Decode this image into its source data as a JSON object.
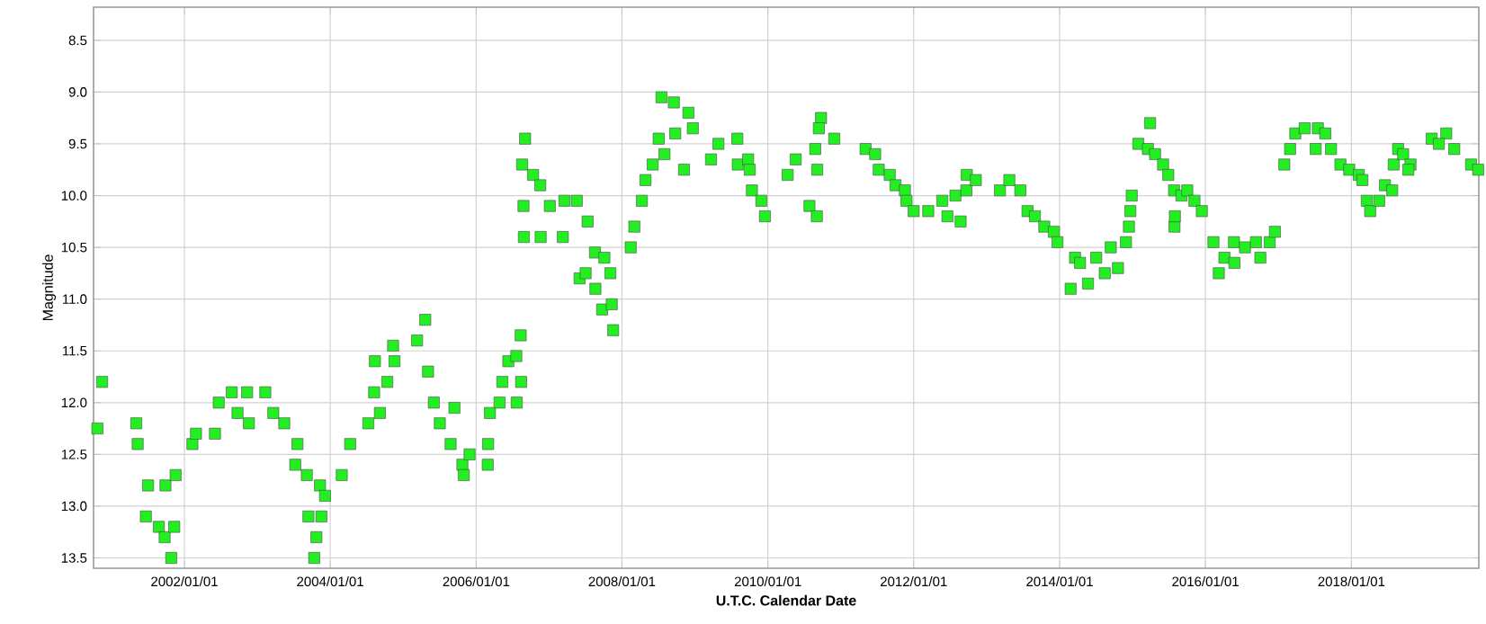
{
  "chart_data": {
    "type": "scatter",
    "xlabel": "U.T.C. Calendar Date",
    "ylabel": "Magnitude",
    "x": [
      "2000-10-22",
      "2000-11-15",
      "2001-05-05",
      "2001-05-12",
      "2001-07-03",
      "2001-06-22",
      "2001-08-26",
      "2001-09-24",
      "2001-09-28",
      "2001-11-18",
      "2001-10-27",
      "2001-11-11",
      "2002-02-10",
      "2002-02-28",
      "2002-06-22",
      "2002-06-03",
      "2002-08-26",
      "2002-11-11",
      "2002-11-20",
      "2002-09-24",
      "2003-02-10",
      "2003-03-22",
      "2003-05-16",
      "2003-07-21",
      "2003-07-10",
      "2003-09-06",
      "2003-11-11",
      "2003-12-06",
      "2003-09-14",
      "2003-11-18",
      "2003-10-24",
      "2003-10-13",
      "2004-02-28",
      "2004-04-10",
      "2004-07-10",
      "2004-08-08",
      "2004-08-12",
      "2004-10-13",
      "2004-11-11",
      "2004-11-18",
      "2004-09-06",
      "2005-03-11",
      "2005-04-21",
      "2005-05-05",
      "2005-06-03",
      "2005-07-03",
      "2005-09-14",
      "2005-08-26",
      "2005-10-24",
      "2005-10-31",
      "2005-11-29",
      "2006-02-28",
      "2006-03-02",
      "2006-03-11",
      "2006-04-28",
      "2006-05-12",
      "2006-06-11",
      "2006-07-21",
      "2006-08-12",
      "2006-08-14",
      "2006-07-23",
      "2006-09-03",
      "2006-08-19",
      "2006-08-26",
      "2006-08-28",
      "2006-10-13",
      "2006-11-18",
      "2006-11-20",
      "2007-01-05",
      "2007-03-19",
      "2007-03-11",
      "2007-06-03",
      "2007-05-20",
      "2007-07-13",
      "2007-08-19",
      "2007-10-05",
      "2007-11-04",
      "2007-07-03",
      "2007-08-21",
      "2007-09-24",
      "2007-11-11",
      "2007-11-18",
      "2008-02-14",
      "2008-03-03",
      "2008-04-10",
      "2008-04-28",
      "2008-06-03",
      "2008-07-03",
      "2008-07-17",
      "2008-08-01",
      "2008-09-24",
      "2008-09-17",
      "2008-11-29",
      "2008-12-21",
      "2008-11-07",
      "2009-03-22",
      "2009-04-28",
      "2009-08-01",
      "2009-08-03",
      "2009-09-24",
      "2009-10-02",
      "2009-10-13",
      "2009-11-29",
      "2009-12-17",
      "2010-04-10",
      "2010-05-20",
      "2010-07-28",
      "2010-09-03",
      "2010-09-05",
      "2010-09-24",
      "2010-09-13",
      "2010-08-26",
      "2010-11-29",
      "2011-05-05",
      "2011-06-22",
      "2011-07-10",
      "2011-09-03",
      "2011-10-02",
      "2011-11-18",
      "2011-11-26",
      "2012-01-01",
      "2012-03-14",
      "2012-05-23",
      "2012-06-18",
      "2012-08-23",
      "2012-07-28",
      "2012-09-21",
      "2012-09-23",
      "2012-11-07",
      "2013-03-08",
      "2013-04-24",
      "2013-06-18",
      "2013-07-24",
      "2013-08-30",
      "2013-10-16",
      "2013-12-03",
      "2013-12-21",
      "2014-02-25",
      "2014-03-19",
      "2014-04-13",
      "2014-05-23",
      "2014-07-03",
      "2014-08-15",
      "2014-09-14",
      "2014-10-20",
      "2014-11-29",
      "2014-12-14",
      "2014-12-21",
      "2014-12-28",
      "2015-01-30",
      "2015-03-30",
      "2015-03-19",
      "2015-04-24",
      "2015-06-03",
      "2015-06-29",
      "2015-07-28",
      "2015-07-30",
      "2015-08-01",
      "2015-09-03",
      "2015-10-02",
      "2015-11-07",
      "2015-12-14",
      "2016-02-10",
      "2016-03-08",
      "2016-04-05",
      "2016-05-23",
      "2016-05-25",
      "2016-07-17",
      "2016-09-10",
      "2016-10-02",
      "2016-11-18",
      "2016-12-14",
      "2017-01-30",
      "2017-02-28",
      "2017-03-26",
      "2017-05-12",
      "2017-07-17",
      "2017-08-23",
      "2017-07-06",
      "2017-09-21",
      "2017-11-07",
      "2017-12-21",
      "2018-02-07",
      "2018-02-25",
      "2018-03-19",
      "2018-04-05",
      "2018-05-20",
      "2018-06-18",
      "2018-07-24",
      "2018-08-01",
      "2018-08-23",
      "2018-09-17",
      "2018-10-24",
      "2018-10-13",
      "2019-02-07",
      "2019-04-21",
      "2019-05-31",
      "2019-03-15",
      "2019-08-23",
      "2019-09-28"
    ],
    "values": [
      12.25,
      11.8,
      12.2,
      12.4,
      12.8,
      13.1,
      13.2,
      13.3,
      12.8,
      12.7,
      13.5,
      13.2,
      12.4,
      12.3,
      12.0,
      12.3,
      11.9,
      11.9,
      12.2,
      12.1,
      11.9,
      12.1,
      12.2,
      12.4,
      12.6,
      12.7,
      12.8,
      12.9,
      13.1,
      13.1,
      13.3,
      13.5,
      12.7,
      12.4,
      12.2,
      11.9,
      11.6,
      11.8,
      11.45,
      11.6,
      12.1,
      11.4,
      11.2,
      11.7,
      12.0,
      12.2,
      12.05,
      12.4,
      12.6,
      12.7,
      12.5,
      12.6,
      12.4,
      12.1,
      12.0,
      11.8,
      11.6,
      11.55,
      11.35,
      11.8,
      12.0,
      9.45,
      9.7,
      10.1,
      10.4,
      9.8,
      9.9,
      10.4,
      10.1,
      10.05,
      10.4,
      10.8,
      10.05,
      10.25,
      10.55,
      10.6,
      10.75,
      10.75,
      10.9,
      11.1,
      11.05,
      11.3,
      10.5,
      10.3,
      10.05,
      9.85,
      9.7,
      9.45,
      9.05,
      9.6,
      9.4,
      9.1,
      9.2,
      9.35,
      9.75,
      9.65,
      9.5,
      9.45,
      9.7,
      9.65,
      9.75,
      9.95,
      10.05,
      10.2,
      9.8,
      9.65,
      10.1,
      10.2,
      9.75,
      9.25,
      9.35,
      9.55,
      9.45,
      9.55,
      9.6,
      9.75,
      9.8,
      9.9,
      9.95,
      10.05,
      10.15,
      10.15,
      10.05,
      10.2,
      10.25,
      10.0,
      9.95,
      9.8,
      9.85,
      9.95,
      9.85,
      9.95,
      10.15,
      10.2,
      10.3,
      10.35,
      10.45,
      10.9,
      10.6,
      10.65,
      10.85,
      10.6,
      10.75,
      10.5,
      10.7,
      10.45,
      10.3,
      10.15,
      10.0,
      9.5,
      9.3,
      9.55,
      9.6,
      9.7,
      9.8,
      9.95,
      10.3,
      10.2,
      10.0,
      9.95,
      10.05,
      10.15,
      10.45,
      10.75,
      10.6,
      10.45,
      10.65,
      10.5,
      10.45,
      10.6,
      10.45,
      10.35,
      9.7,
      9.55,
      9.4,
      9.35,
      9.35,
      9.4,
      9.55,
      9.55,
      9.7,
      9.75,
      9.8,
      9.85,
      10.05,
      10.15,
      10.05,
      9.9,
      9.95,
      9.7,
      9.55,
      9.6,
      9.7,
      9.75,
      9.45,
      9.4,
      9.55,
      9.5,
      9.7,
      9.75
    ],
    "color": "#22ee22",
    "marker": "square",
    "grid": true,
    "xlim": [
      "2000-10-03",
      "2019-10-01"
    ],
    "xticks": [
      {
        "value": "2002-01-01",
        "label": "2002/01/01"
      },
      {
        "value": "2004-01-01",
        "label": "2004/01/01"
      },
      {
        "value": "2006-01-01",
        "label": "2006/01/01"
      },
      {
        "value": "2008-01-01",
        "label": "2008/01/01"
      },
      {
        "value": "2010-01-01",
        "label": "2010/01/01"
      },
      {
        "value": "2012-01-01",
        "label": "2012/01/01"
      },
      {
        "value": "2014-01-01",
        "label": "2014/01/01"
      },
      {
        "value": "2016-01-01",
        "label": "2016/01/01"
      },
      {
        "value": "2018-01-01",
        "label": "2018/01/01"
      }
    ],
    "ylim": [
      13.6,
      8.18
    ],
    "yticks": [
      8.5,
      {
        "value": 9,
        "label": "9.0"
      },
      9.5,
      {
        "value": 10,
        "label": "10.0"
      },
      10.5,
      {
        "value": 11,
        "label": "11.0"
      },
      11.5,
      {
        "value": 12,
        "label": "12.0"
      },
      12.5,
      {
        "value": 13,
        "label": "13.0"
      },
      13.5
    ]
  }
}
